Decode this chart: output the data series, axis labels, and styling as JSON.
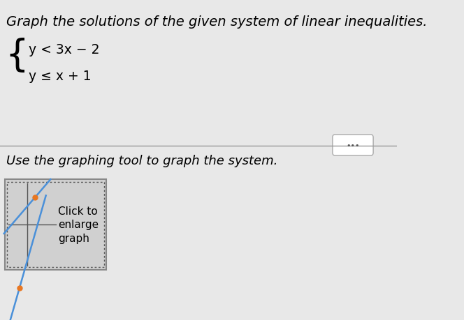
{
  "title_text": "Graph the solutions of the given system of linear inequalities.",
  "ineq1": "y < 3x − 2",
  "ineq2": "y ≤ x + 1",
  "instruction_text": "Use the graphing tool to graph the system.",
  "graph_label": "Click to\nenlarge\ngraph",
  "bg_color": "#e8e8e8",
  "title_fontsize": 14,
  "instr_fontsize": 13,
  "line1_color": "#4a90d9",
  "line2_color": "#4a90d9",
  "dot_color": "#e87722",
  "separator_color": "#999999",
  "dots_button_color": "#cccccc",
  "graph_box_bg": "#d0d0d0",
  "graph_box_border": "#888888"
}
